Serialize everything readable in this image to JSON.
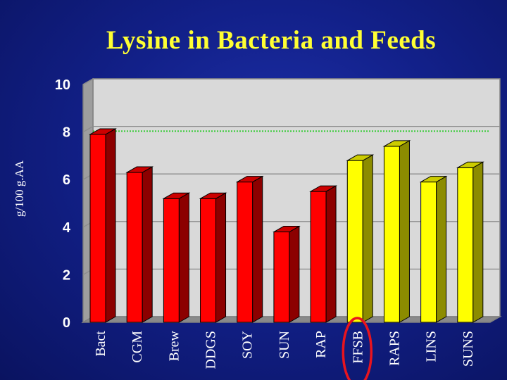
{
  "slide": {
    "title": "Lysine in Bacteria and Feeds"
  },
  "chart_data": {
    "type": "bar",
    "title": "Lysine in Bacteria and Feeds",
    "xlabel": "",
    "ylabel": "g/100 g.AA",
    "ylim": [
      0,
      10
    ],
    "yticks": [
      "0",
      "2",
      "4",
      "6",
      "8",
      "10"
    ],
    "grid": true,
    "categories": [
      "Bact",
      "CGM",
      "Brew",
      "DDGS",
      "SOY",
      "SUN",
      "RAP",
      "FFSB",
      "RAPS",
      "LINS",
      "SUNS"
    ],
    "values": [
      7.9,
      6.3,
      5.2,
      5.2,
      5.9,
      3.8,
      5.5,
      6.8,
      7.4,
      5.9,
      6.5
    ],
    "bar_colors": [
      "#ff0000",
      "#ff0000",
      "#ff0000",
      "#ff0000",
      "#ff0000",
      "#ff0000",
      "#ff0000",
      "#ffff00",
      "#ffff00",
      "#ffff00",
      "#ffff00"
    ],
    "reference_line": {
      "value": 7.8,
      "color": "#33cc33",
      "style": "dotted"
    },
    "highlighted_category": "FFSB",
    "highlight_color": "#e8141e",
    "plot_background": "#d9d9d9"
  }
}
